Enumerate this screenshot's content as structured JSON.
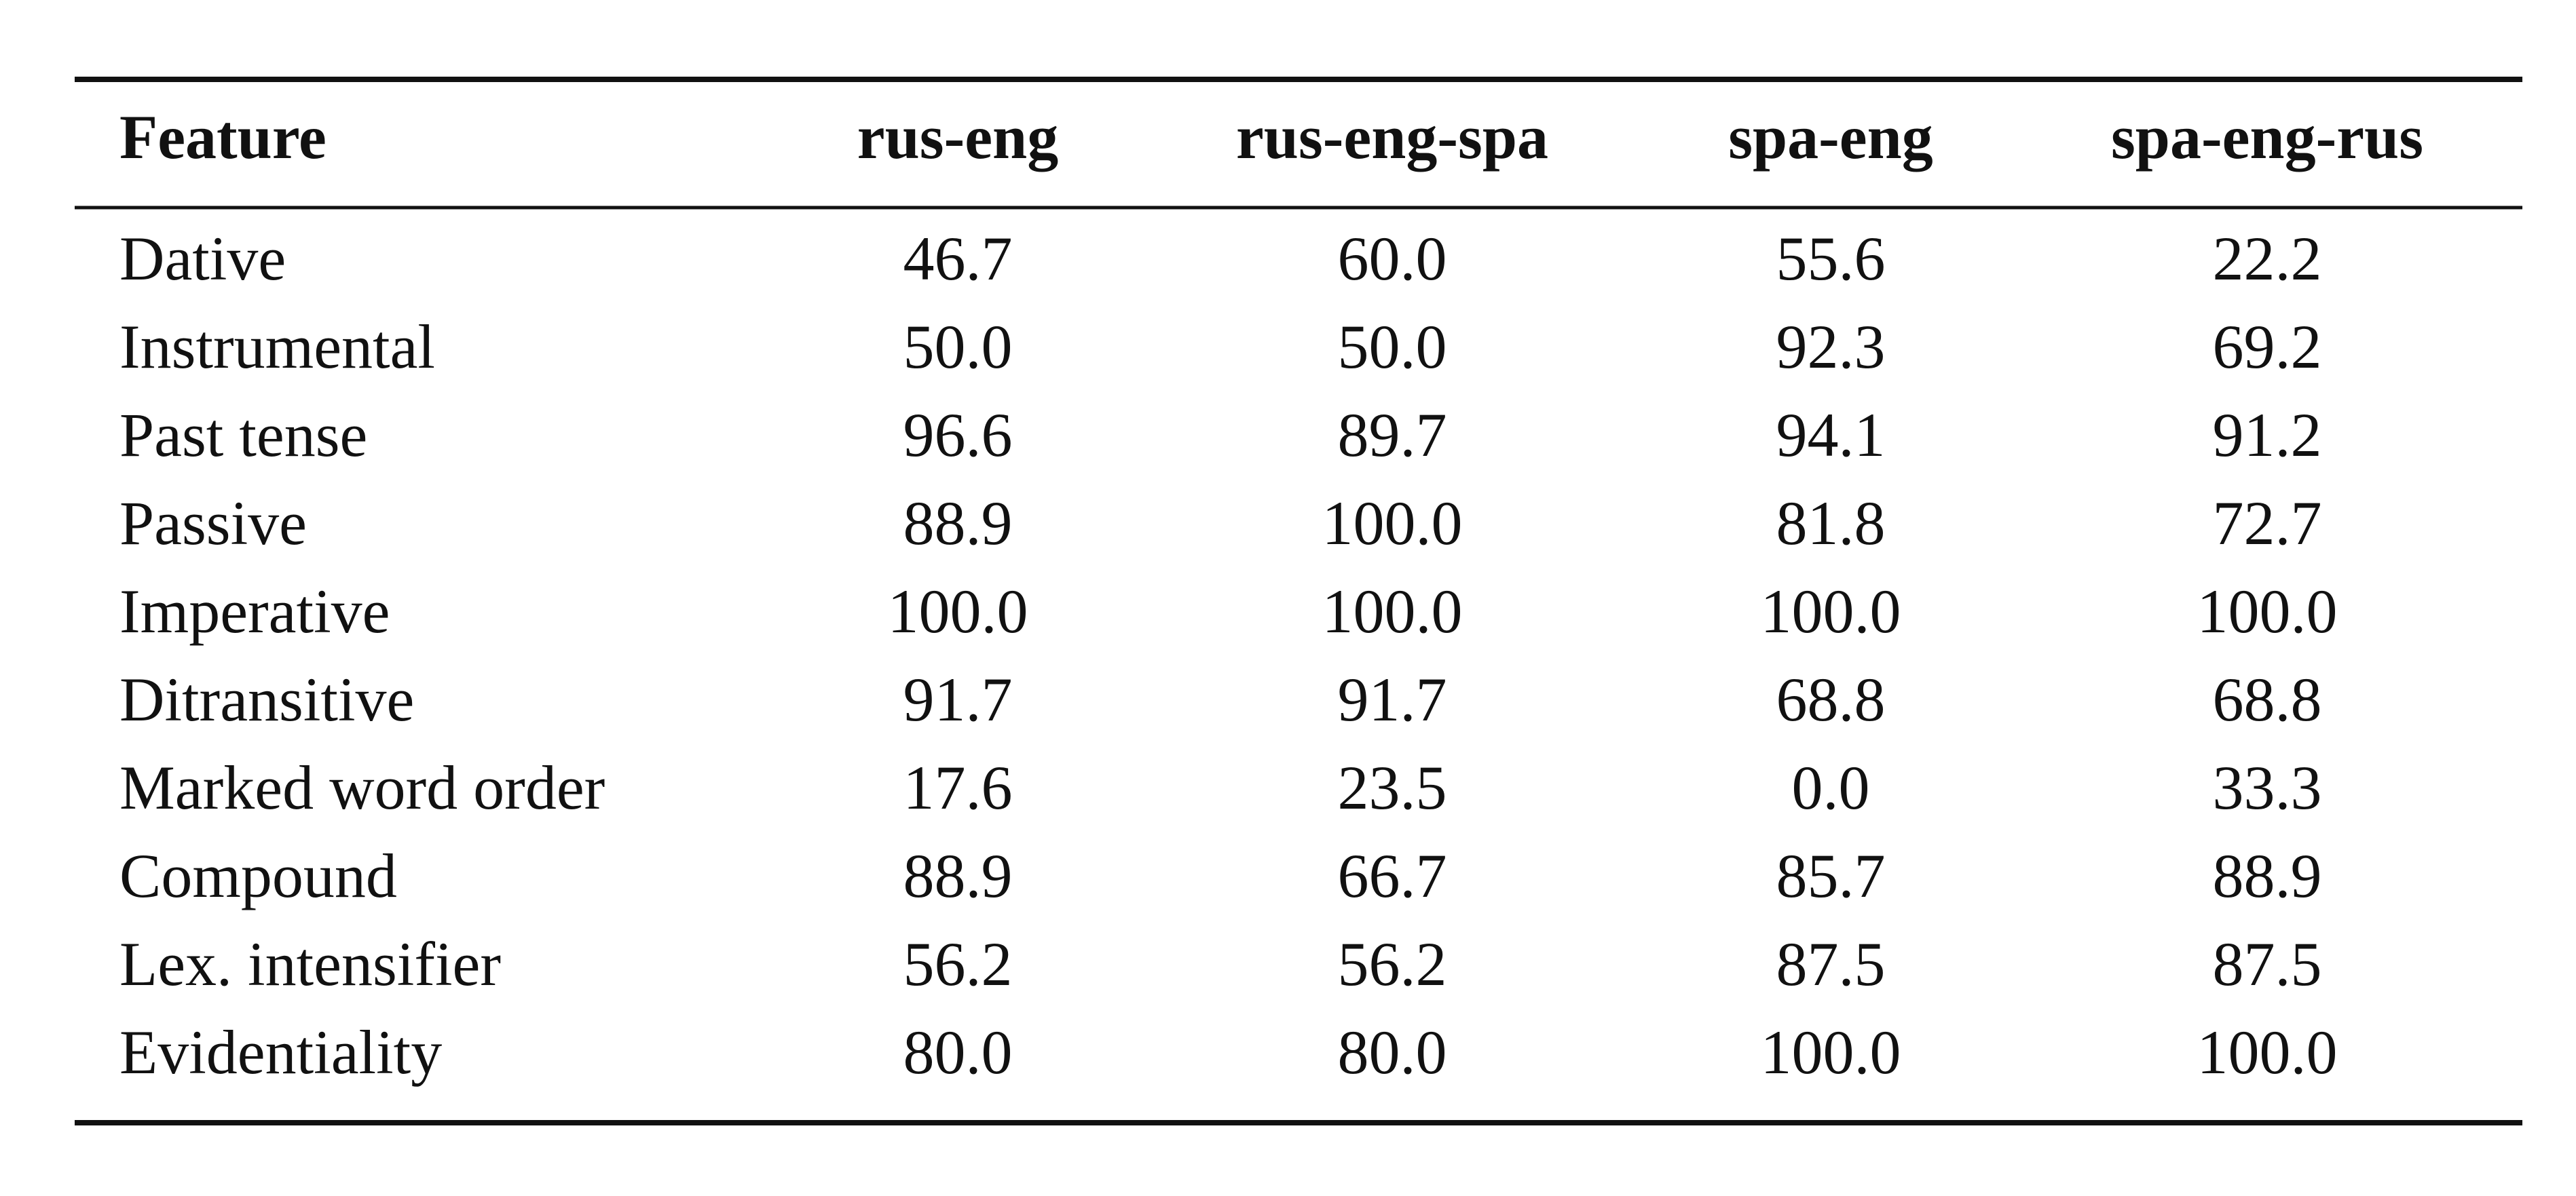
{
  "table": {
    "header": [
      "Feature",
      "rus-eng",
      "rus-eng-spa",
      "spa-eng",
      "spa-eng-rus"
    ],
    "rows": [
      [
        "Dative",
        "46.7",
        "60.0",
        "55.6",
        "22.2"
      ],
      [
        "Instrumental",
        "50.0",
        "50.0",
        "92.3",
        "69.2"
      ],
      [
        "Past tense",
        "96.6",
        "89.7",
        "94.1",
        "91.2"
      ],
      [
        "Passive",
        "88.9",
        "100.0",
        "81.8",
        "72.7"
      ],
      [
        "Imperative",
        "100.0",
        "100.0",
        "100.0",
        "100.0"
      ],
      [
        "Ditransitive",
        "91.7",
        "91.7",
        "68.8",
        "68.8"
      ],
      [
        "Marked word order",
        "17.6",
        "23.5",
        "0.0",
        "33.3"
      ],
      [
        "Compound",
        "88.9",
        "66.7",
        "85.7",
        "88.9"
      ],
      [
        "Lex. intensifier",
        "56.2",
        "56.2",
        "87.5",
        "87.5"
      ],
      [
        "Evidentiality",
        "80.0",
        "80.0",
        "100.0",
        "100.0"
      ]
    ]
  }
}
